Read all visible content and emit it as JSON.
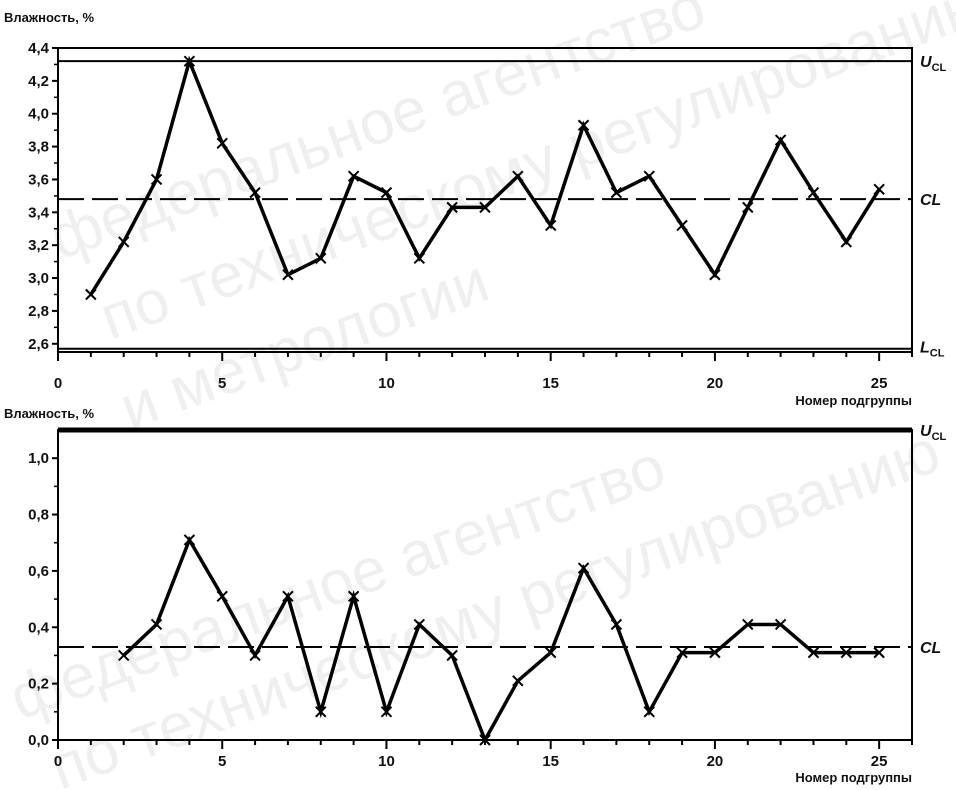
{
  "chart_data": [
    {
      "type": "line",
      "ylabel": "Влажность, %",
      "xlabel": "Номер подгруппы",
      "xlim": [
        0,
        26
      ],
      "ylim": [
        2.55,
        4.4
      ],
      "x_ticks": [
        "0",
        "5",
        "10",
        "15",
        "20",
        "25"
      ],
      "y_ticks": [
        "2,6",
        "2,8",
        "3,0",
        "3,2",
        "3,4",
        "3,6",
        "3,8",
        "4,0",
        "4,2",
        "4,4"
      ],
      "limits": {
        "ucl": {
          "label": "U",
          "sub": "CL",
          "value": 4.32
        },
        "cl": {
          "label": "CL",
          "value": 3.48
        },
        "lcl": {
          "label": "L",
          "sub": "CL",
          "value": 2.57
        }
      },
      "series": [
        {
          "x": [
            1,
            2,
            3,
            4,
            5,
            6,
            7,
            8,
            9,
            10,
            11,
            12,
            13,
            14,
            15,
            16,
            17,
            18,
            19,
            20,
            21,
            22,
            23,
            24,
            25
          ],
          "values": [
            2.9,
            3.22,
            3.6,
            4.32,
            3.82,
            3.52,
            3.02,
            3.12,
            3.62,
            3.52,
            3.12,
            3.43,
            3.43,
            3.62,
            3.32,
            3.93,
            3.52,
            3.62,
            3.32,
            3.02,
            3.43,
            3.84,
            3.52,
            3.22,
            3.54
          ]
        }
      ]
    },
    {
      "type": "line",
      "ylabel": "Влажность, %",
      "xlabel": "Номер подгруппы",
      "xlim": [
        0,
        26
      ],
      "ylim": [
        0,
        1.1
      ],
      "x_ticks": [
        "0",
        "5",
        "10",
        "15",
        "20",
        "25"
      ],
      "y_ticks": [
        "0,0",
        "0,2",
        "0,4",
        "0,6",
        "0,8",
        "1,0"
      ],
      "limits": {
        "ucl": {
          "label": "U",
          "sub": "CL",
          "value": 1.1
        },
        "cl": {
          "label": "CL",
          "value": 0.33
        }
      },
      "series": [
        {
          "x": [
            2,
            3,
            4,
            5,
            6,
            7,
            8,
            9,
            10,
            11,
            12,
            13,
            14,
            15,
            16,
            17,
            18,
            19,
            20,
            21,
            22,
            23,
            24,
            25
          ],
          "values": [
            0.3,
            0.41,
            0.71,
            0.51,
            0.3,
            0.51,
            0.1,
            0.51,
            0.1,
            0.41,
            0.3,
            0.0,
            0.21,
            0.31,
            0.61,
            0.41,
            0.1,
            0.31,
            0.31,
            0.41,
            0.41,
            0.31,
            0.31,
            0.31
          ]
        }
      ]
    }
  ],
  "watermark": {
    "lines": [
      "федеральное агентство",
      "по техническому регулированию",
      "и метрологии"
    ]
  }
}
